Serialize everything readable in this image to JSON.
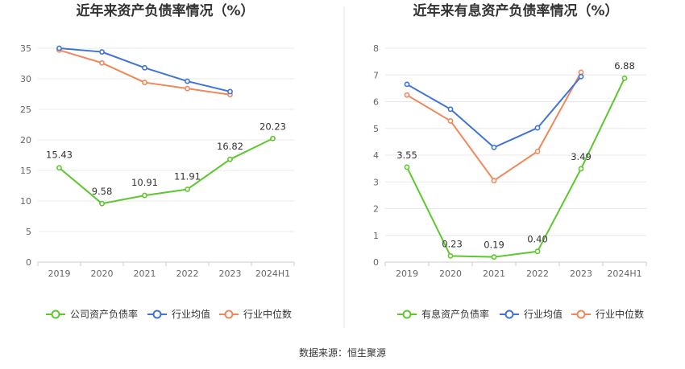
{
  "source_label": "数据来源：恒生聚源",
  "chart_data": [
    {
      "type": "line",
      "title": "近年来资产负债率情况（%）",
      "categories": [
        "2019",
        "2020",
        "2021",
        "2022",
        "2023",
        "2024H1"
      ],
      "ylim": [
        0,
        35
      ],
      "yticks": [
        0,
        5,
        10,
        15,
        20,
        25,
        30,
        35
      ],
      "grid": true,
      "legend_position": "bottom",
      "series": [
        {
          "name": "公司资产负债率",
          "color": "#5dc72e",
          "values": [
            15.43,
            9.58,
            10.91,
            11.91,
            16.82,
            20.23
          ],
          "labels": [
            "15.43",
            "9.58",
            "10.91",
            "11.91",
            "16.82",
            "20.23"
          ]
        },
        {
          "name": "行业均值",
          "color": "#3f73d8",
          "values": [
            35.0,
            34.4,
            31.8,
            29.6,
            27.9,
            null
          ]
        },
        {
          "name": "行业中位数",
          "color": "#f0875a",
          "values": [
            34.7,
            32.6,
            29.4,
            28.4,
            27.4,
            null
          ]
        }
      ]
    },
    {
      "type": "line",
      "title": "近年来有息资产负债率情况（%）",
      "categories": [
        "2019",
        "2020",
        "2021",
        "2022",
        "2023",
        "2024H1"
      ],
      "ylim": [
        0,
        8
      ],
      "yticks": [
        0,
        1,
        2,
        3,
        4,
        5,
        6,
        7,
        8
      ],
      "grid": true,
      "legend_position": "bottom",
      "series": [
        {
          "name": "有息资产负债率",
          "color": "#5dc72e",
          "values": [
            3.55,
            0.23,
            0.19,
            0.4,
            3.49,
            6.88
          ],
          "labels": [
            "3.55",
            "0.23",
            "0.19",
            "0.40",
            "3.49",
            "6.88"
          ]
        },
        {
          "name": "行业均值",
          "color": "#3f73d8",
          "values": [
            6.65,
            5.72,
            4.29,
            5.02,
            6.94,
            null
          ]
        },
        {
          "name": "行业中位数",
          "color": "#f0875a",
          "values": [
            6.25,
            5.28,
            3.05,
            4.14,
            7.1,
            null
          ]
        }
      ]
    }
  ]
}
